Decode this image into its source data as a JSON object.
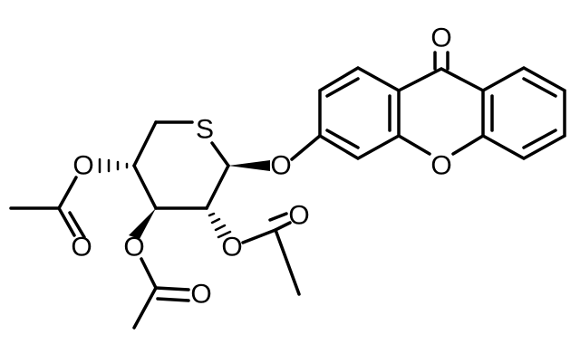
{
  "atoms": [
    {
      "label": "O"
    },
    {
      "label": "S"
    },
    {
      "label": "O"
    },
    {
      "label": "O"
    },
    {
      "label": "O"
    },
    {
      "label": "O"
    },
    {
      "label": "O"
    },
    {
      "label": "O"
    },
    {
      "label": "O"
    },
    {
      "label": "O"
    }
  ]
}
